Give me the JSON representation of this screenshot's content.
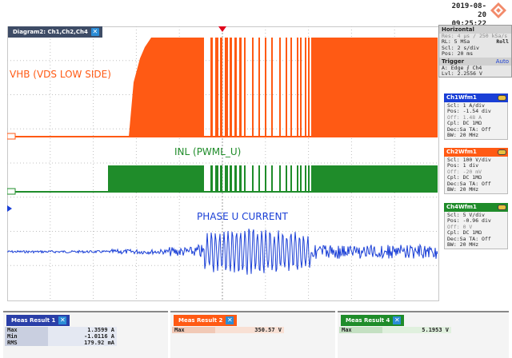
{
  "datetime": {
    "date": "2019-08-20",
    "time": "09:25:22"
  },
  "diagram": {
    "tab_label": "Diagram2: Ch1,Ch2,Ch4",
    "close": "✕"
  },
  "labels": {
    "vhb": "VHB (VDS LOW SIDE)",
    "inl": "INL (PWML_U)",
    "phase": "PHASE U CURRENT"
  },
  "horizontal": {
    "title": "Horizontal",
    "res": "Res: 4 µs / 250 kSa/s",
    "rl": "RL: 5 MSa",
    "roll": "Roll",
    "scl": "Scl: 2 s/div",
    "pos": "Pos: 20 ms",
    "trigger_title": "Trigger",
    "trigger_mode": "Auto",
    "trigger_src": "A:  Edge  ⨍ Ch4",
    "trigger_lvl": "Lvl: 2.2556 V"
  },
  "channels": [
    {
      "name": "Ch1Wfm1",
      "color": "#1a3fd6",
      "lines": [
        "Scl: 1 A/div",
        "Pos: -1.54 div",
        "Off: 1.48 A",
        "Cpl: DC 1MΩ",
        "Dec:Sa    TA: Off",
        "BW: 20 MHz"
      ]
    },
    {
      "name": "Ch2Wfm1",
      "color": "#ff5a14",
      "lines": [
        "Scl: 100 V/div",
        "Pos: 1 div",
        "Off: -20 mV",
        "Cpl: DC 1MΩ",
        "Dec:Sa    TA: Off",
        "BW: 20 MHz"
      ]
    },
    {
      "name": "Ch4Wfm1",
      "color": "#1f8c2a",
      "lines": [
        "Scl: 5 V/div",
        "Pos: -0.96 div",
        "Off: 0 V",
        "Cpl: DC 1MΩ",
        "Dec:Sa    TA: Off",
        "BW: 20 MHz"
      ]
    }
  ],
  "measurements": [
    {
      "title": "Meas Result 1",
      "color": "#2a3fa8",
      "rows": [
        {
          "k": "Max",
          "v": "1.3599 A"
        },
        {
          "k": "Min",
          "v": "-1.0116 A"
        },
        {
          "k": "RMS",
          "v": "179.92 mA"
        }
      ]
    },
    {
      "title": "Meas Result 2",
      "color": "#ff5a14",
      "rows": [
        {
          "k": "Max",
          "v": "350.57 V"
        }
      ]
    },
    {
      "title": "Meas Result 4",
      "color": "#1f8c2a",
      "rows": [
        {
          "k": "Max",
          "v": "5.1953 V"
        }
      ]
    }
  ],
  "colors": {
    "ch1": "#1a3fd6",
    "ch2": "#ff5a14",
    "ch4": "#1f8c2a",
    "grid": "#c0c0c0"
  }
}
